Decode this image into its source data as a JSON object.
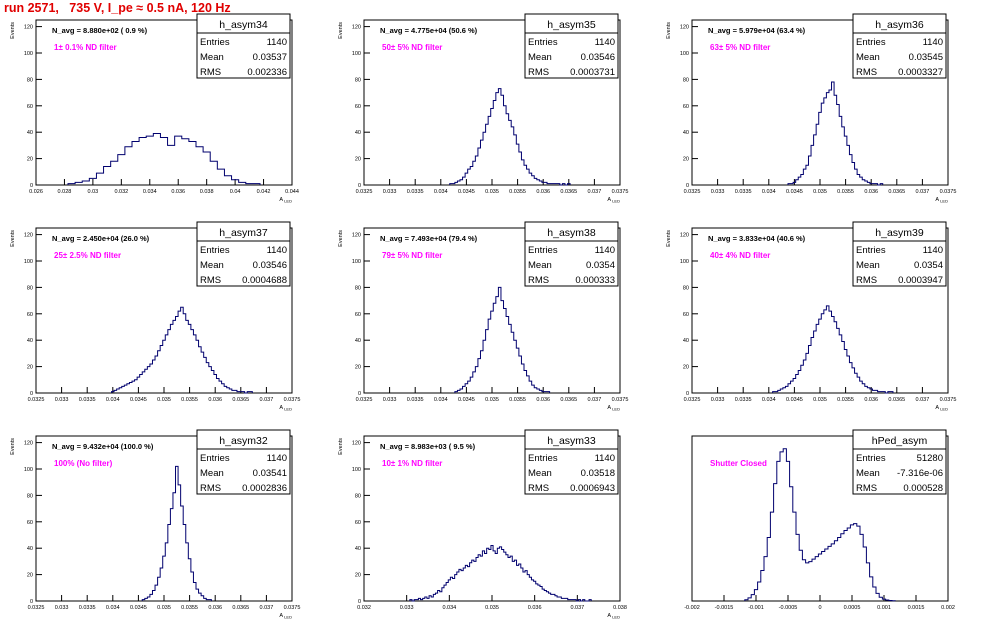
{
  "page": {
    "title": "run 2571,   735 V, I_pe ≈ 0.5 nA, 120 Hz",
    "title_color": "#e00000"
  },
  "style": {
    "line_color": "#00006e",
    "annotation_color": "#ff00ff"
  },
  "chart_data": [
    {
      "type": "histogram",
      "name": "h_asym34",
      "navg": "N_avg = 8.880e+02 ( 0.9 %)",
      "note": "1± 0.1% ND filter",
      "stats": {
        "Entries": "1140",
        "Mean": "0.03537",
        "RMS": "0.002336"
      },
      "ylabel": "Events",
      "xlabel": "A_LED",
      "xlim": [
        0.026,
        0.044
      ],
      "ylim": [
        0,
        125
      ],
      "yticks": [
        0,
        20,
        40,
        60,
        80,
        100,
        120
      ],
      "xticks": [
        "0.026",
        "0.028",
        "0.03",
        "0.032",
        "0.034",
        "0.036",
        "0.038",
        "0.04",
        "0.042",
        "0.044"
      ],
      "x": [
        0.0285,
        0.029,
        0.0295,
        0.03,
        0.0305,
        0.031,
        0.0315,
        0.032,
        0.0325,
        0.033,
        0.0335,
        0.034,
        0.0345,
        0.035,
        0.0355,
        0.036,
        0.0365,
        0.037,
        0.0375,
        0.038,
        0.0385,
        0.039,
        0.0395,
        0.04,
        0.0405,
        0.041,
        0.0415
      ],
      "values": [
        1,
        2,
        3,
        5,
        9,
        14,
        18,
        23,
        29,
        33,
        36,
        37,
        39,
        36,
        30,
        37,
        35,
        33,
        29,
        25,
        18,
        12,
        7,
        4,
        2,
        1,
        1
      ]
    },
    {
      "type": "histogram",
      "name": "h_asym35",
      "navg": "N_avg = 4.775e+04 (50.6 %)",
      "note": "50± 5% ND filter",
      "stats": {
        "Entries": "1140",
        "Mean": "0.03546",
        "RMS": "0.0003731"
      },
      "ylabel": "Events",
      "xlabel": "A_LED",
      "xlim": [
        0.0325,
        0.0375
      ],
      "ylim": [
        0,
        125
      ],
      "yticks": [
        0,
        20,
        40,
        60,
        80,
        100,
        120
      ],
      "xticks": [
        "0.0325",
        "0.033",
        "0.0335",
        "0.034",
        "0.0345",
        "0.035",
        "0.0355",
        "0.036",
        "0.0365",
        "0.037",
        "0.0375"
      ],
      "x": [
        0.0342,
        0.03425,
        0.0343,
        0.03435,
        0.0344,
        0.03445,
        0.0345,
        0.03455,
        0.0346,
        0.03465,
        0.0347,
        0.03475,
        0.0348,
        0.03485,
        0.0349,
        0.03495,
        0.035,
        0.03505,
        0.0351,
        0.03515,
        0.0352,
        0.03525,
        0.0353,
        0.03535,
        0.0354,
        0.03545,
        0.0355,
        0.03555,
        0.0356,
        0.03565,
        0.0357,
        0.03575,
        0.0358,
        0.03585,
        0.0359,
        0.03595,
        0.036,
        0.03605,
        0.0361,
        0.03615,
        0.0362,
        0.03625,
        0.0363,
        0.03635,
        0.0364,
        0.03645,
        0.0365
      ],
      "values": [
        1,
        1,
        2,
        3,
        4,
        6,
        9,
        12,
        14,
        18,
        22,
        28,
        34,
        40,
        46,
        52,
        58,
        64,
        70,
        73,
        68,
        60,
        54,
        49,
        44,
        38,
        31,
        25,
        19,
        15,
        12,
        9,
        7,
        5,
        4,
        3,
        2,
        2,
        1,
        1,
        1,
        1,
        1,
        0,
        1,
        0,
        1
      ]
    },
    {
      "type": "histogram",
      "name": "h_asym36",
      "navg": "N_avg = 5.979e+04 (63.4 %)",
      "note": "63± 5% ND filter",
      "stats": {
        "Entries": "1140",
        "Mean": "0.03545",
        "RMS": "0.0003327"
      },
      "ylabel": "Events",
      "xlabel": "A_LED",
      "xlim": [
        0.0325,
        0.0375
      ],
      "ylim": [
        0,
        125
      ],
      "yticks": [
        0,
        20,
        40,
        60,
        80,
        100,
        120
      ],
      "xticks": [
        "0.0325",
        "0.033",
        "0.0335",
        "0.034",
        "0.0345",
        "0.035",
        "0.0355",
        "0.036",
        "0.0365",
        "0.037",
        "0.0375"
      ],
      "x": [
        0.0344,
        0.03445,
        0.0345,
        0.03455,
        0.0346,
        0.03465,
        0.0347,
        0.03475,
        0.0348,
        0.03485,
        0.0349,
        0.03495,
        0.035,
        0.03505,
        0.0351,
        0.03515,
        0.0352,
        0.03525,
        0.0353,
        0.03535,
        0.0354,
        0.03545,
        0.0355,
        0.03555,
        0.0356,
        0.03565,
        0.0357,
        0.03575,
        0.0358,
        0.03585,
        0.0359,
        0.03595,
        0.036,
        0.03605,
        0.0361,
        0.03615,
        0.0362
      ],
      "values": [
        1,
        1,
        2,
        4,
        6,
        8,
        12,
        15,
        22,
        30,
        38,
        46,
        55,
        62,
        66,
        70,
        72,
        78,
        68,
        61,
        52,
        44,
        37,
        30,
        23,
        17,
        12,
        8,
        6,
        4,
        3,
        2,
        1,
        1,
        1,
        0,
        1
      ]
    },
    {
      "type": "histogram",
      "name": "h_asym37",
      "navg": "N_avg = 2.450e+04 (26.0 %)",
      "note": "25± 2.5% ND filter",
      "stats": {
        "Entries": "1140",
        "Mean": "0.03546",
        "RMS": "0.0004688"
      },
      "ylabel": "Events",
      "xlabel": "A_LED",
      "xlim": [
        0.0325,
        0.0375
      ],
      "ylim": [
        0,
        125
      ],
      "yticks": [
        0,
        20,
        40,
        60,
        80,
        100,
        120
      ],
      "xticks": [
        "0.0325",
        "0.033",
        "0.0335",
        "0.034",
        "0.0345",
        "0.035",
        "0.0355",
        "0.036",
        "0.0365",
        "0.037",
        "0.0375"
      ],
      "x": [
        0.034,
        0.03405,
        0.0341,
        0.03415,
        0.0342,
        0.03425,
        0.0343,
        0.03435,
        0.0344,
        0.03445,
        0.0345,
        0.03455,
        0.0346,
        0.03465,
        0.0347,
        0.03475,
        0.0348,
        0.03485,
        0.0349,
        0.03495,
        0.035,
        0.03505,
        0.0351,
        0.03515,
        0.0352,
        0.03525,
        0.0353,
        0.03535,
        0.0354,
        0.03545,
        0.0355,
        0.03555,
        0.0356,
        0.03565,
        0.0357,
        0.03575,
        0.0358,
        0.03585,
        0.0359,
        0.03595,
        0.036,
        0.03605,
        0.0361,
        0.03615,
        0.0362,
        0.03625,
        0.0363,
        0.03635,
        0.0364,
        0.03645,
        0.0365,
        0.03655,
        0.0366,
        0.03665,
        0.0367
      ],
      "values": [
        1,
        2,
        3,
        4,
        5,
        6,
        7,
        8,
        9,
        10,
        12,
        14,
        16,
        18,
        20,
        22,
        25,
        28,
        32,
        36,
        40,
        44,
        48,
        52,
        55,
        58,
        62,
        65,
        60,
        55,
        52,
        48,
        44,
        40,
        35,
        31,
        27,
        23,
        20,
        17,
        14,
        11,
        9,
        7,
        5,
        4,
        3,
        2,
        2,
        1,
        1,
        1,
        0,
        1,
        1
      ]
    },
    {
      "type": "histogram",
      "name": "h_asym38",
      "navg": "N_avg = 7.493e+04 (79.4 %)",
      "note": "79± 5% ND filter",
      "stats": {
        "Entries": "1140",
        "Mean": "0.0354",
        "RMS": "0.000333"
      },
      "ylabel": "Events",
      "xlabel": "A_LED",
      "xlim": [
        0.0325,
        0.0375
      ],
      "ylim": [
        0,
        125
      ],
      "yticks": [
        0,
        20,
        40,
        60,
        80,
        100,
        120
      ],
      "xticks": [
        "0.0325",
        "0.033",
        "0.0335",
        "0.034",
        "0.0345",
        "0.035",
        "0.0355",
        "0.036",
        "0.0365",
        "0.037",
        "0.0375"
      ],
      "x": [
        0.0343,
        0.03435,
        0.0344,
        0.03445,
        0.0345,
        0.03455,
        0.0346,
        0.03465,
        0.0347,
        0.03475,
        0.0348,
        0.03485,
        0.0349,
        0.03495,
        0.035,
        0.03505,
        0.0351,
        0.03515,
        0.0352,
        0.03525,
        0.0353,
        0.03535,
        0.0354,
        0.03545,
        0.0355,
        0.03555,
        0.0356,
        0.03565,
        0.0357,
        0.03575,
        0.0358,
        0.03585,
        0.0359,
        0.03595,
        0.036,
        0.03605,
        0.0361
      ],
      "values": [
        1,
        2,
        3,
        5,
        7,
        9,
        12,
        16,
        20,
        26,
        32,
        40,
        48,
        56,
        62,
        68,
        73,
        80,
        70,
        64,
        58,
        52,
        46,
        40,
        34,
        28,
        22,
        17,
        13,
        9,
        6,
        4,
        3,
        2,
        1,
        1,
        1
      ]
    },
    {
      "type": "histogram",
      "name": "h_asym39",
      "navg": "N_avg = 3.833e+04 (40.6 %)",
      "note": "40± 4% ND filter",
      "stats": {
        "Entries": "1140",
        "Mean": "0.0354",
        "RMS": "0.0003947"
      },
      "ylabel": "Events",
      "xlabel": "A_LED",
      "xlim": [
        0.0325,
        0.0375
      ],
      "ylim": [
        0,
        125
      ],
      "yticks": [
        0,
        20,
        40,
        60,
        80,
        100,
        120
      ],
      "xticks": [
        "0.0325",
        "0.033",
        "0.0335",
        "0.034",
        "0.0345",
        "0.035",
        "0.0355",
        "0.036",
        "0.0365",
        "0.037",
        "0.0375"
      ],
      "x": [
        0.0341,
        0.03415,
        0.0342,
        0.03425,
        0.0343,
        0.03435,
        0.0344,
        0.03445,
        0.0345,
        0.03455,
        0.0346,
        0.03465,
        0.0347,
        0.03475,
        0.0348,
        0.03485,
        0.0349,
        0.03495,
        0.035,
        0.03505,
        0.0351,
        0.03515,
        0.0352,
        0.03525,
        0.0353,
        0.03535,
        0.0354,
        0.03545,
        0.0355,
        0.03555,
        0.0356,
        0.03565,
        0.0357,
        0.03575,
        0.0358,
        0.03585,
        0.0359,
        0.03595,
        0.036,
        0.03605,
        0.0361,
        0.03615,
        0.0362,
        0.03625,
        0.0363,
        0.03635,
        0.0364
      ],
      "values": [
        1,
        1,
        2,
        3,
        4,
        5,
        7,
        9,
        11,
        14,
        17,
        21,
        25,
        30,
        36,
        42,
        47,
        52,
        56,
        60,
        63,
        66,
        62,
        58,
        54,
        49,
        44,
        39,
        33,
        28,
        23,
        19,
        15,
        12,
        9,
        7,
        5,
        4,
        3,
        2,
        2,
        1,
        1,
        1,
        0,
        1,
        1
      ]
    },
    {
      "type": "histogram",
      "name": "h_asym32",
      "navg": "N_avg = 9.432e+04 (100.0 %)",
      "note": "100% (No filter)",
      "stats": {
        "Entries": "1140",
        "Mean": "0.03541",
        "RMS": "0.0002836"
      },
      "ylabel": "Events",
      "xlabel": "A_LED",
      "xlim": [
        0.0325,
        0.0375
      ],
      "ylim": [
        0,
        125
      ],
      "yticks": [
        0,
        20,
        40,
        60,
        80,
        100,
        120
      ],
      "xticks": [
        "0.0325",
        "0.033",
        "0.0335",
        "0.034",
        "0.0345",
        "0.035",
        "0.0355",
        "0.036",
        "0.0365",
        "0.037",
        "0.0375"
      ],
      "x": [
        0.0346,
        0.03465,
        0.0347,
        0.03475,
        0.0348,
        0.03485,
        0.0349,
        0.03495,
        0.035,
        0.03505,
        0.0351,
        0.03515,
        0.0352,
        0.03525,
        0.0353,
        0.03535,
        0.0354,
        0.03545,
        0.0355,
        0.03555,
        0.0356,
        0.03565,
        0.0357,
        0.03575,
        0.0358,
        0.03585,
        0.0359
      ],
      "values": [
        1,
        2,
        3,
        5,
        8,
        12,
        18,
        25,
        34,
        44,
        58,
        70,
        82,
        102,
        88,
        72,
        58,
        44,
        32,
        22,
        14,
        9,
        6,
        4,
        2,
        1,
        1
      ]
    },
    {
      "type": "histogram",
      "name": "h_asym33",
      "navg": "N_avg = 8.983e+03 ( 9.5 %)",
      "note": "10± 1% ND filter",
      "stats": {
        "Entries": "1140",
        "Mean": "0.03518",
        "RMS": "0.0006943"
      },
      "ylabel": "Events",
      "xlabel": "A_LED",
      "xlim": [
        0.032,
        0.038
      ],
      "ylim": [
        0,
        125
      ],
      "yticks": [
        0,
        20,
        40,
        60,
        80,
        100,
        120
      ],
      "xticks": [
        "0.032",
        "0.033",
        "0.034",
        "0.035",
        "0.036",
        "0.037",
        "0.038"
      ],
      "x": [
        0.0331,
        0.03315,
        0.0332,
        0.03325,
        0.0333,
        0.03335,
        0.0334,
        0.03345,
        0.0335,
        0.03355,
        0.0336,
        0.03365,
        0.0337,
        0.03375,
        0.0338,
        0.03385,
        0.0339,
        0.03395,
        0.034,
        0.03405,
        0.0341,
        0.03415,
        0.0342,
        0.03425,
        0.0343,
        0.03435,
        0.0344,
        0.03445,
        0.0345,
        0.03455,
        0.0346,
        0.03465,
        0.0347,
        0.03475,
        0.0348,
        0.03485,
        0.0349,
        0.03495,
        0.035,
        0.03505,
        0.0351,
        0.03515,
        0.0352,
        0.03525,
        0.0353,
        0.03535,
        0.0354,
        0.03545,
        0.0355,
        0.03555,
        0.0356,
        0.03565,
        0.0357,
        0.03575,
        0.0358,
        0.03585,
        0.0359,
        0.03595,
        0.036,
        0.03605,
        0.0361,
        0.03615,
        0.0362,
        0.03625,
        0.0363,
        0.03635,
        0.0364,
        0.03645,
        0.0365,
        0.03655,
        0.0366,
        0.03665,
        0.0367,
        0.03675,
        0.0368,
        0.03685,
        0.0369,
        0.03695,
        0.037,
        0.03705,
        0.0371,
        0.03715,
        0.0372,
        0.03725,
        0.0373
      ],
      "values": [
        1,
        0,
        1,
        1,
        2,
        1,
        2,
        3,
        2,
        4,
        3,
        5,
        6,
        8,
        7,
        10,
        12,
        14,
        16,
        18,
        17,
        20,
        22,
        24,
        23,
        25,
        27,
        26,
        29,
        31,
        30,
        33,
        35,
        34,
        38,
        36,
        40,
        39,
        42,
        38,
        36,
        40,
        41,
        39,
        37,
        35,
        33,
        34,
        30,
        31,
        27,
        28,
        25,
        22,
        23,
        20,
        18,
        16,
        15,
        13,
        12,
        11,
        9,
        8,
        7,
        6,
        5,
        5,
        4,
        3,
        3,
        2,
        2,
        2,
        1,
        1,
        1,
        1,
        0,
        1,
        0,
        1,
        0,
        0,
        1
      ]
    },
    {
      "type": "histogram",
      "name": "hPed_asym",
      "navg": "",
      "note": "Shutter Closed",
      "stats": {
        "Entries": "51280",
        "Mean": "-7.316e-06",
        "RMS": "0.000528"
      },
      "ylabel": "",
      "xlabel": "",
      "xlim": [
        -0.002,
        0.002
      ],
      "ylim": [
        0,
        2600
      ],
      "yticks": [],
      "xticks": [
        "-0.002",
        "-0.0015",
        "-0.001",
        "-0.0005",
        "0",
        "0.0005",
        "0.001",
        "0.0015",
        "0.002"
      ],
      "x": [
        -0.00115,
        -0.0011,
        -0.00105,
        -0.001,
        -0.00095,
        -0.0009,
        -0.00085,
        -0.0008,
        -0.00075,
        -0.0007,
        -0.00065,
        -0.0006,
        -0.00055,
        -0.0005,
        -0.00045,
        -0.0004,
        -0.00035,
        -0.0003,
        -0.00025,
        -0.0002,
        -0.00015,
        -0.0001,
        -5e-05,
        0,
        5e-05,
        0.0001,
        0.00015,
        0.0002,
        0.00025,
        0.0003,
        0.00035,
        0.0004,
        0.00045,
        0.0005,
        0.00055,
        0.0006,
        0.00065,
        0.0007,
        0.00075,
        0.0008,
        0.00085,
        0.0009,
        0.00095,
        0.001,
        0.00105,
        0.0011,
        0.00115
      ],
      "values": [
        20,
        50,
        100,
        180,
        300,
        480,
        700,
        1000,
        1400,
        1850,
        2200,
        2350,
        2400,
        2200,
        1800,
        1400,
        1050,
        800,
        650,
        600,
        620,
        660,
        700,
        740,
        780,
        820,
        860,
        900,
        950,
        1000,
        1060,
        1110,
        1150,
        1200,
        1220,
        1180,
        1050,
        850,
        600,
        380,
        220,
        120,
        60,
        30,
        15,
        8,
        4
      ]
    }
  ]
}
